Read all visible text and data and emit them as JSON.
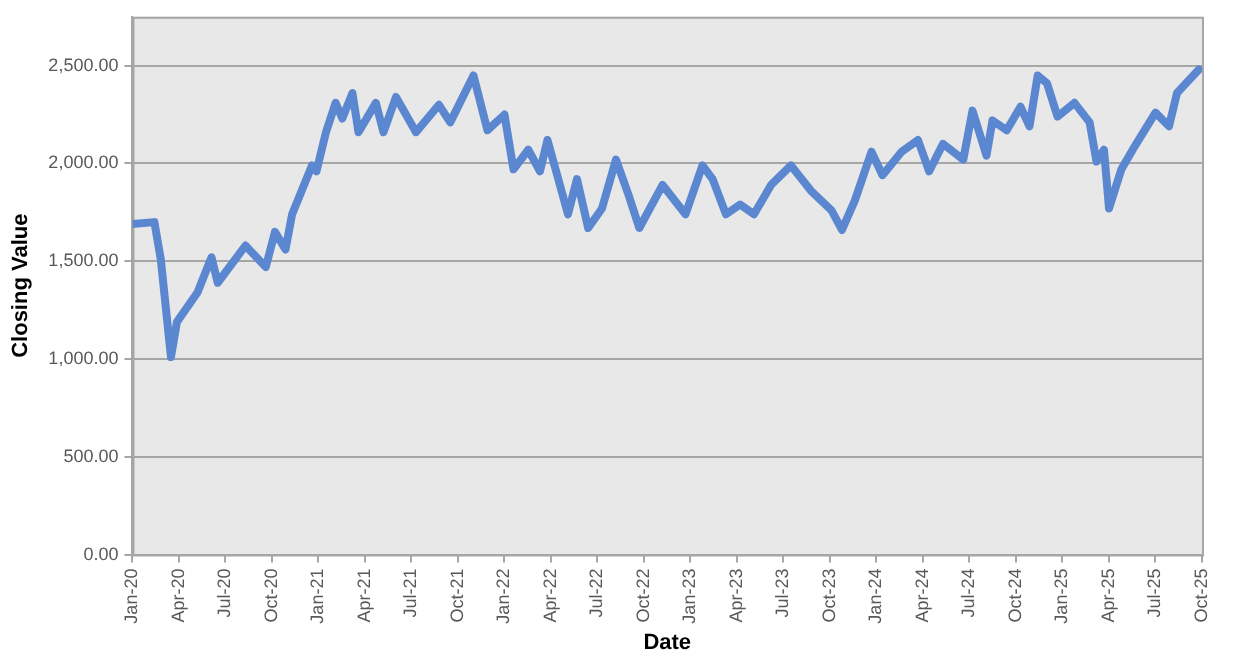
{
  "chart_data": {
    "type": "line",
    "xlabel": "Date",
    "ylabel": "Closing Value",
    "x": [
      "2020-01-01",
      "2020-02-13",
      "2020-02-25",
      "2020-03-16",
      "2020-03-28",
      "2020-05-07",
      "2020-06-04",
      "2020-06-16",
      "2020-08-10",
      "2020-09-19",
      "2020-10-07",
      "2020-10-28",
      "2020-11-10",
      "2020-12-19",
      "2020-12-28",
      "2021-01-16",
      "2021-02-04",
      "2021-02-16",
      "2021-03-07",
      "2021-03-19",
      "2021-04-22",
      "2021-05-07",
      "2021-06-01",
      "2021-07-10",
      "2021-08-25",
      "2021-09-16",
      "2021-11-01",
      "2021-11-28",
      "2022-01-01",
      "2022-01-19",
      "2022-02-16",
      "2022-03-10",
      "2022-03-25",
      "2022-05-04",
      "2022-05-22",
      "2022-06-13",
      "2022-07-10",
      "2022-08-07",
      "2022-09-01",
      "2022-09-22",
      "2022-11-07",
      "2022-12-22",
      "2023-01-25",
      "2023-02-13",
      "2023-03-10",
      "2023-04-07",
      "2023-05-04",
      "2023-06-07",
      "2023-07-16",
      "2023-08-25",
      "2023-10-04",
      "2023-10-25",
      "2023-11-19",
      "2023-12-22",
      "2024-01-13",
      "2024-02-19",
      "2024-03-22",
      "2024-04-13",
      "2024-05-10",
      "2024-06-19",
      "2024-07-07",
      "2024-08-04",
      "2024-08-16",
      "2024-09-13",
      "2024-10-10",
      "2024-10-28",
      "2024-11-13",
      "2024-12-01",
      "2024-12-22",
      "2025-01-25",
      "2025-02-22",
      "2025-03-07",
      "2025-03-22",
      "2025-04-01",
      "2025-04-25",
      "2025-05-22",
      "2025-07-01",
      "2025-07-28",
      "2025-08-13",
      "2025-09-25"
    ],
    "series": [
      {
        "color": "#5b87d0",
        "values": [
          1690,
          1700,
          1510,
          1010,
          1190,
          1340,
          1520,
          1390,
          1580,
          1470,
          1650,
          1560,
          1740,
          1990,
          1960,
          2160,
          2310,
          2230,
          2360,
          2160,
          2310,
          2160,
          2340,
          2160,
          2300,
          2210,
          2450,
          2170,
          2250,
          1970,
          2070,
          1960,
          2120,
          1740,
          1920,
          1670,
          1770,
          2020,
          1840,
          1670,
          1890,
          1740,
          1990,
          1920,
          1740,
          1790,
          1740,
          1890,
          1990,
          1860,
          1760,
          1660,
          1810,
          2060,
          1940,
          2060,
          2120,
          1960,
          2100,
          2020,
          2270,
          2040,
          2220,
          2170,
          2290,
          2190,
          2450,
          2410,
          2240,
          2310,
          2210,
          2010,
          2070,
          1770,
          1970,
          2090,
          2260,
          2190,
          2360,
          2480
        ]
      }
    ],
    "xlim": [
      "2020-01",
      "2025-10"
    ],
    "xticks": [
      {
        "value": "2020-01",
        "label": "Jan-20"
      },
      {
        "value": "2020-04",
        "label": "Apr-20"
      },
      {
        "value": "2020-07",
        "label": "Jul-20"
      },
      {
        "value": "2020-10",
        "label": "Oct-20"
      },
      {
        "value": "2021-01",
        "label": "Jan-21"
      },
      {
        "value": "2021-04",
        "label": "Apr-21"
      },
      {
        "value": "2021-07",
        "label": "Jul-21"
      },
      {
        "value": "2021-10",
        "label": "Oct-21"
      },
      {
        "value": "2022-01",
        "label": "Jan-22"
      },
      {
        "value": "2022-04",
        "label": "Apr-22"
      },
      {
        "value": "2022-07",
        "label": "Jul-22"
      },
      {
        "value": "2022-10",
        "label": "Oct-22"
      },
      {
        "value": "2023-01",
        "label": "Jan-23"
      },
      {
        "value": "2023-04",
        "label": "Apr-23"
      },
      {
        "value": "2023-07",
        "label": "Jul-23"
      },
      {
        "value": "2023-10",
        "label": "Oct-23"
      },
      {
        "value": "2024-01",
        "label": "Jan-24"
      },
      {
        "value": "2024-04",
        "label": "Apr-24"
      },
      {
        "value": "2024-07",
        "label": "Jul-24"
      },
      {
        "value": "2024-10",
        "label": "Oct-24"
      },
      {
        "value": "2025-01",
        "label": "Jan-25"
      },
      {
        "value": "2025-04",
        "label": "Apr-25"
      },
      {
        "value": "2025-07",
        "label": "Jul-25"
      },
      {
        "value": "2025-10",
        "label": "Oct-25"
      }
    ],
    "ylim": [
      0,
      2750
    ],
    "yticks": [
      {
        "value": 0,
        "label": "0.00"
      },
      {
        "value": 500,
        "label": "500.00"
      },
      {
        "value": 1000,
        "label": "1,000.00"
      },
      {
        "value": 1500,
        "label": "1,500.00"
      },
      {
        "value": 2000,
        "label": "2,000.00"
      },
      {
        "value": 2500,
        "label": "2,500.00"
      }
    ],
    "grid": "y",
    "legend": false,
    "marker": "none",
    "line_style": "solid"
  }
}
